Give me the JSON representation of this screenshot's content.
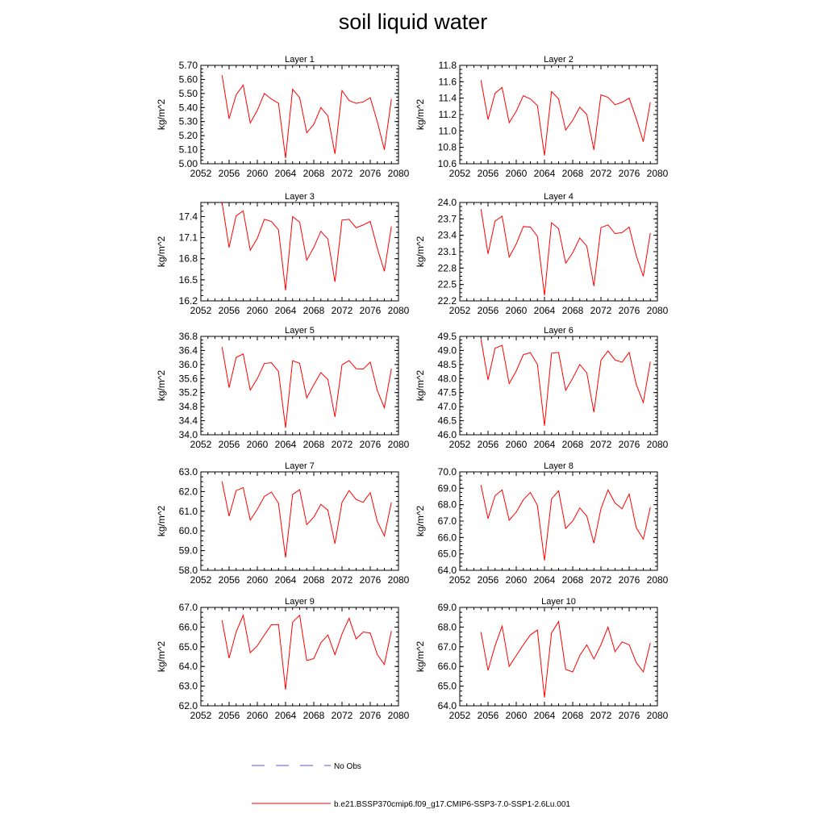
{
  "title": "soil liquid water",
  "legend": {
    "entries": [
      {
        "label": "No Obs",
        "color": "#5b5bbf",
        "style": "dashed"
      },
      {
        "label": "b.e21.BSSP370cmip6.f09_g17.CMIP6-SSP3-7.0-SSP1-2.6Lu.001",
        "color": "#ff0000",
        "style": "solid"
      }
    ],
    "placement": "bottom-center"
  },
  "chart_data": [
    {
      "type": "line",
      "title": "Layer 1",
      "ylabel": "kg/m^2",
      "xlim": [
        2052,
        2080
      ],
      "xticks": [
        "2052",
        "2056",
        "2060",
        "2064",
        "2068",
        "2072",
        "2076",
        "2080"
      ],
      "ylim": [
        5.0,
        5.7
      ],
      "yticks": [
        "5.00",
        "5.10",
        "5.20",
        "5.30",
        "5.40",
        "5.50",
        "5.60",
        "5.70"
      ],
      "series": [
        {
          "name": "b.e21.BSSP370cmip6.f09_g17.CMIP6-SSP3-7.0-SSP1-2.6Lu.001",
          "color": "#ff0000",
          "x": [
            2055,
            2056,
            2057,
            2058,
            2059,
            2060,
            2061,
            2062,
            2063,
            2064,
            2065,
            2066,
            2067,
            2068,
            2069,
            2070,
            2071,
            2072,
            2073,
            2074,
            2075,
            2076,
            2077,
            2078,
            2079
          ],
          "values": [
            5.63,
            5.32,
            5.49,
            5.56,
            5.29,
            5.38,
            5.5,
            5.46,
            5.43,
            5.04,
            5.53,
            5.47,
            5.22,
            5.28,
            5.4,
            5.34,
            5.07,
            5.52,
            5.45,
            5.43,
            5.44,
            5.47,
            5.3,
            5.1,
            5.46
          ]
        }
      ]
    },
    {
      "type": "line",
      "title": "Layer 2",
      "ylabel": "kg/m^2",
      "xlim": [
        2052,
        2080
      ],
      "xticks": [
        "2052",
        "2056",
        "2060",
        "2064",
        "2068",
        "2072",
        "2076",
        "2080"
      ],
      "ylim": [
        10.6,
        11.8
      ],
      "yticks": [
        "10.6",
        "10.8",
        "11.0",
        "11.2",
        "11.4",
        "11.6",
        "11.8"
      ],
      "series": [
        {
          "name": "b.e21.BSSP370cmip6.f09_g17.CMIP6-SSP3-7.0-SSP1-2.6Lu.001",
          "color": "#ff0000",
          "x": [
            2055,
            2056,
            2057,
            2058,
            2059,
            2060,
            2061,
            2062,
            2063,
            2064,
            2065,
            2066,
            2067,
            2068,
            2069,
            2070,
            2071,
            2072,
            2073,
            2074,
            2075,
            2076,
            2077,
            2078,
            2079
          ],
          "values": [
            11.62,
            11.14,
            11.46,
            11.53,
            11.1,
            11.24,
            11.43,
            11.39,
            11.31,
            10.7,
            11.48,
            11.39,
            11.01,
            11.13,
            11.29,
            11.2,
            10.77,
            11.44,
            11.41,
            11.32,
            11.35,
            11.4,
            11.15,
            10.87,
            11.35
          ]
        }
      ]
    },
    {
      "type": "line",
      "title": "Layer 3",
      "ylabel": "kg/m^2",
      "xlim": [
        2052,
        2080
      ],
      "xticks": [
        "2052",
        "2056",
        "2060",
        "2064",
        "2068",
        "2072",
        "2076",
        "2080"
      ],
      "ylim": [
        16.2,
        17.6
      ],
      "yticks": [
        "16.2",
        "16.5",
        "16.8",
        "17.1",
        "17.4"
      ],
      "series": [
        {
          "name": "b.e21.BSSP370cmip6.f09_g17.CMIP6-SSP3-7.0-SSP1-2.6Lu.001",
          "color": "#ff0000",
          "x": [
            2055,
            2056,
            2057,
            2058,
            2059,
            2060,
            2061,
            2062,
            2063,
            2064,
            2065,
            2066,
            2067,
            2068,
            2069,
            2070,
            2071,
            2072,
            2073,
            2074,
            2075,
            2076,
            2077,
            2078,
            2079
          ],
          "values": [
            17.6,
            16.96,
            17.41,
            17.48,
            16.92,
            17.09,
            17.36,
            17.33,
            17.21,
            16.35,
            17.4,
            17.32,
            16.78,
            16.96,
            17.19,
            17.08,
            16.47,
            17.35,
            17.36,
            17.24,
            17.28,
            17.33,
            16.95,
            16.62,
            17.26
          ]
        }
      ]
    },
    {
      "type": "line",
      "title": "Layer 4",
      "ylabel": "kg/m^2",
      "xlim": [
        2052,
        2080
      ],
      "xticks": [
        "2052",
        "2056",
        "2060",
        "2064",
        "2068",
        "2072",
        "2076",
        "2080"
      ],
      "ylim": [
        22.2,
        24.0
      ],
      "yticks": [
        "22.2",
        "22.5",
        "22.8",
        "23.1",
        "23.4",
        "23.7",
        "24.0"
      ],
      "series": [
        {
          "name": "b.e21.BSSP370cmip6.f09_g17.CMIP6-SSP3-7.0-SSP1-2.6Lu.001",
          "color": "#ff0000",
          "x": [
            2055,
            2056,
            2057,
            2058,
            2059,
            2060,
            2061,
            2062,
            2063,
            2064,
            2065,
            2066,
            2067,
            2068,
            2069,
            2070,
            2071,
            2072,
            2073,
            2074,
            2075,
            2076,
            2077,
            2078,
            2079
          ],
          "values": [
            23.88,
            23.06,
            23.66,
            23.75,
            23.0,
            23.24,
            23.56,
            23.55,
            23.38,
            22.3,
            23.63,
            23.52,
            22.89,
            23.08,
            23.35,
            23.2,
            22.47,
            23.54,
            23.59,
            23.43,
            23.45,
            23.55,
            23.03,
            22.65,
            23.44
          ]
        }
      ]
    },
    {
      "type": "line",
      "title": "Layer 5",
      "ylabel": "kg/m^2",
      "xlim": [
        2052,
        2080
      ],
      "xticks": [
        "2052",
        "2056",
        "2060",
        "2064",
        "2068",
        "2072",
        "2076",
        "2080"
      ],
      "ylim": [
        34.0,
        36.8
      ],
      "yticks": [
        "34.0",
        "34.4",
        "34.8",
        "35.2",
        "35.6",
        "36.0",
        "36.4",
        "36.8"
      ],
      "series": [
        {
          "name": "b.e21.BSSP370cmip6.f09_g17.CMIP6-SSP3-7.0-SSP1-2.6Lu.001",
          "color": "#ff0000",
          "x": [
            2055,
            2056,
            2057,
            2058,
            2059,
            2060,
            2061,
            2062,
            2063,
            2064,
            2065,
            2066,
            2067,
            2068,
            2069,
            2070,
            2071,
            2072,
            2073,
            2074,
            2075,
            2076,
            2077,
            2078,
            2079
          ],
          "values": [
            36.5,
            35.34,
            36.2,
            36.3,
            35.27,
            35.6,
            36.03,
            36.05,
            35.8,
            34.2,
            36.11,
            36.03,
            35.05,
            35.42,
            35.77,
            35.57,
            34.51,
            35.99,
            36.11,
            35.88,
            35.87,
            36.07,
            35.26,
            34.77,
            35.88
          ]
        }
      ]
    },
    {
      "type": "line",
      "title": "Layer 6",
      "ylabel": "kg/m^2",
      "xlim": [
        2052,
        2080
      ],
      "xticks": [
        "2052",
        "2056",
        "2060",
        "2064",
        "2068",
        "2072",
        "2076",
        "2080"
      ],
      "ylim": [
        46.0,
        49.5
      ],
      "yticks": [
        "46.0",
        "46.5",
        "47.0",
        "47.5",
        "48.0",
        "48.5",
        "49.0",
        "49.5"
      ],
      "series": [
        {
          "name": "b.e21.BSSP370cmip6.f09_g17.CMIP6-SSP3-7.0-SSP1-2.6Lu.001",
          "color": "#ff0000",
          "x": [
            2055,
            2056,
            2057,
            2058,
            2059,
            2060,
            2061,
            2062,
            2063,
            2064,
            2065,
            2066,
            2067,
            2068,
            2069,
            2070,
            2071,
            2072,
            2073,
            2074,
            2075,
            2076,
            2077,
            2078,
            2079
          ],
          "values": [
            49.4,
            47.95,
            49.08,
            49.18,
            47.82,
            48.27,
            48.85,
            48.92,
            48.5,
            46.32,
            48.9,
            48.93,
            47.58,
            48.01,
            48.5,
            48.2,
            46.8,
            48.65,
            48.98,
            48.66,
            48.58,
            48.93,
            47.79,
            47.15,
            48.6
          ]
        }
      ]
    },
    {
      "type": "line",
      "title": "Layer 7",
      "ylabel": "kg/m^2",
      "xlim": [
        2052,
        2080
      ],
      "xticks": [
        "2052",
        "2056",
        "2060",
        "2064",
        "2068",
        "2072",
        "2076",
        "2080"
      ],
      "ylim": [
        58.0,
        63.0
      ],
      "yticks": [
        "58.0",
        "59.0",
        "60.0",
        "61.0",
        "62.0",
        "63.0"
      ],
      "series": [
        {
          "name": "b.e21.BSSP370cmip6.f09_g17.CMIP6-SSP3-7.0-SSP1-2.6Lu.001",
          "color": "#ff0000",
          "x": [
            2055,
            2056,
            2057,
            2058,
            2059,
            2060,
            2061,
            2062,
            2063,
            2064,
            2065,
            2066,
            2067,
            2068,
            2069,
            2070,
            2071,
            2072,
            2073,
            2074,
            2075,
            2076,
            2077,
            2078,
            2079
          ],
          "values": [
            62.52,
            60.75,
            62.05,
            62.2,
            60.55,
            61.1,
            61.75,
            61.98,
            61.4,
            58.65,
            61.85,
            62.1,
            60.32,
            60.7,
            61.35,
            61.05,
            59.35,
            61.45,
            62.05,
            61.6,
            61.45,
            61.95,
            60.48,
            59.75,
            61.45
          ]
        }
      ]
    },
    {
      "type": "line",
      "title": "Layer 8",
      "ylabel": "kg/m^2",
      "xlim": [
        2052,
        2080
      ],
      "xticks": [
        "2052",
        "2056",
        "2060",
        "2064",
        "2068",
        "2072",
        "2076",
        "2080"
      ],
      "ylim": [
        64.0,
        70.0
      ],
      "yticks": [
        "64.0",
        "65.0",
        "66.0",
        "67.0",
        "68.0",
        "69.0",
        "70.0"
      ],
      "series": [
        {
          "name": "b.e21.BSSP370cmip6.f09_g17.CMIP6-SSP3-7.0-SSP1-2.6Lu.001",
          "color": "#ff0000",
          "x": [
            2055,
            2056,
            2057,
            2058,
            2059,
            2060,
            2061,
            2062,
            2063,
            2064,
            2065,
            2066,
            2067,
            2068,
            2069,
            2070,
            2071,
            2072,
            2073,
            2074,
            2075,
            2076,
            2077,
            2078,
            2079
          ],
          "values": [
            69.2,
            67.15,
            68.55,
            68.9,
            67.05,
            67.55,
            68.3,
            68.75,
            67.95,
            64.6,
            68.35,
            68.85,
            66.55,
            67.0,
            67.8,
            67.3,
            65.65,
            67.75,
            68.9,
            68.1,
            67.75,
            68.65,
            66.6,
            65.9,
            67.85
          ]
        }
      ]
    },
    {
      "type": "line",
      "title": "Layer 9",
      "ylabel": "kg/m^2",
      "xlim": [
        2052,
        2080
      ],
      "xticks": [
        "2052",
        "2056",
        "2060",
        "2064",
        "2068",
        "2072",
        "2076",
        "2080"
      ],
      "ylim": [
        62.0,
        67.0
      ],
      "yticks": [
        "62.0",
        "63.0",
        "64.0",
        "65.0",
        "66.0",
        "67.0"
      ],
      "series": [
        {
          "name": "b.e21.BSSP370cmip6.f09_g17.CMIP6-SSP3-7.0-SSP1-2.6Lu.001",
          "color": "#ff0000",
          "x": [
            2055,
            2056,
            2057,
            2058,
            2059,
            2060,
            2061,
            2062,
            2063,
            2064,
            2065,
            2066,
            2067,
            2068,
            2069,
            2070,
            2071,
            2072,
            2073,
            2074,
            2075,
            2076,
            2077,
            2078,
            2079
          ],
          "values": [
            66.35,
            64.42,
            65.75,
            66.6,
            64.7,
            65.05,
            65.6,
            66.12,
            66.13,
            62.82,
            66.25,
            66.6,
            64.3,
            64.4,
            65.2,
            65.6,
            64.6,
            65.65,
            66.45,
            65.4,
            65.75,
            65.7,
            64.6,
            64.1,
            65.8
          ]
        }
      ]
    },
    {
      "type": "line",
      "title": "Layer 10",
      "ylabel": "kg/m^2",
      "xlim": [
        2052,
        2080
      ],
      "xticks": [
        "2052",
        "2056",
        "2060",
        "2064",
        "2068",
        "2072",
        "2076",
        "2080"
      ],
      "ylim": [
        64.0,
        69.0
      ],
      "yticks": [
        "64.0",
        "65.0",
        "66.0",
        "67.0",
        "68.0",
        "69.0"
      ],
      "series": [
        {
          "name": "b.e21.BSSP370cmip6.f09_g17.CMIP6-SSP3-7.0-SSP1-2.6Lu.001",
          "color": "#ff0000",
          "x": [
            2055,
            2056,
            2057,
            2058,
            2059,
            2060,
            2061,
            2062,
            2063,
            2064,
            2065,
            2066,
            2067,
            2068,
            2069,
            2070,
            2071,
            2072,
            2073,
            2074,
            2075,
            2076,
            2077,
            2078,
            2079
          ],
          "values": [
            67.75,
            65.8,
            67.05,
            68.05,
            66.0,
            66.55,
            67.1,
            67.6,
            67.85,
            64.42,
            67.7,
            68.28,
            65.85,
            65.72,
            66.55,
            67.1,
            66.38,
            67.1,
            68.0,
            66.75,
            67.25,
            67.1,
            66.2,
            65.72,
            67.2
          ]
        }
      ]
    }
  ]
}
